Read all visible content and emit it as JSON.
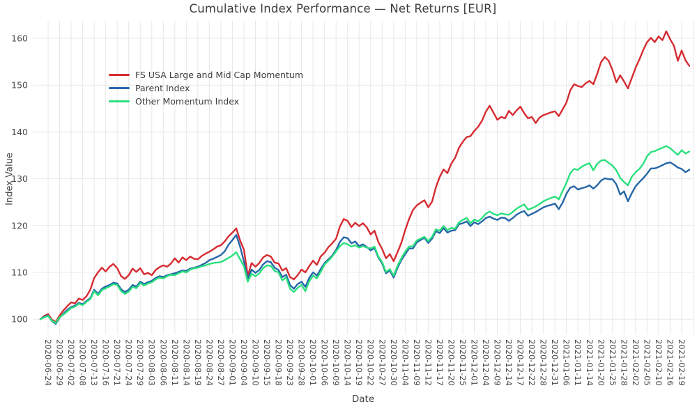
{
  "title": "Cumulative Index Performance — Net Returns [EUR]",
  "axes": {
    "x_label": "Date",
    "y_label": "Index Value",
    "y_ticks": [
      100,
      110,
      120,
      130,
      140,
      150,
      160
    ],
    "x_tick_labels": [
      "2020-06-24",
      "2020-06-29",
      "2020-07-02",
      "2020-07-08",
      "2020-07-13",
      "2020-07-16",
      "2020-07-21",
      "2020-07-24",
      "2020-07-29",
      "2020-08-03",
      "2020-08-06",
      "2020-08-11",
      "2020-08-14",
      "2020-08-19",
      "2020-08-24",
      "2020-08-27",
      "2020-09-01",
      "2020-09-04",
      "2020-09-10",
      "2020-09-15",
      "2020-09-18",
      "2020-09-23",
      "2020-09-28",
      "2020-10-01",
      "2020-10-06",
      "2020-10-09",
      "2020-10-14",
      "2020-10-19",
      "2020-10-22",
      "2020-10-27",
      "2020-10-30",
      "2020-11-04",
      "2020-11-09",
      "2020-11-12",
      "2020-11-17",
      "2020-11-20",
      "2020-11-25",
      "2020-12-01",
      "2020-12-04",
      "2020-12-09",
      "2020-12-14",
      "2020-12-17",
      "2020-12-22",
      "2020-12-28",
      "2020-12-31",
      "2021-01-06",
      "2021-01-11",
      "2021-01-14",
      "2021-01-20",
      "2021-01-25",
      "2021-01-28",
      "2021-02-02",
      "2021-02-05",
      "2021-02-10",
      "2021-02-16",
      "2021-02-19"
    ]
  },
  "legend": [
    {
      "label": "FS USA Large and Mid Cap Momentum",
      "color": "#d62b31"
    },
    {
      "label": "Parent Index",
      "color": "#2566a8"
    },
    {
      "label": "Other Momentum Index",
      "color": "#29e07d"
    }
  ],
  "style": {
    "gridline_color": "#e8e8e8",
    "tick_text_color": "#4a4a4a",
    "background": "#ffffff"
  },
  "chart_data": {
    "type": "line",
    "title": "Cumulative Index Performance — Net Returns [EUR]",
    "xlabel": "Date",
    "ylabel": "Index Value",
    "ylim": [
      96.8,
      163.7
    ],
    "grid": true,
    "legend_position": "inside-top-left",
    "x_tick_every": 3,
    "x_tick_start_index": 2,
    "x": [
      "2020-06-22",
      "2020-06-23",
      "2020-06-24",
      "2020-06-25",
      "2020-06-26",
      "2020-06-29",
      "2020-06-30",
      "2020-07-01",
      "2020-07-02",
      "2020-07-06",
      "2020-07-07",
      "2020-07-08",
      "2020-07-09",
      "2020-07-10",
      "2020-07-13",
      "2020-07-14",
      "2020-07-15",
      "2020-07-16",
      "2020-07-17",
      "2020-07-20",
      "2020-07-21",
      "2020-07-22",
      "2020-07-23",
      "2020-07-24",
      "2020-07-27",
      "2020-07-28",
      "2020-07-29",
      "2020-07-30",
      "2020-07-31",
      "2020-08-03",
      "2020-08-04",
      "2020-08-05",
      "2020-08-06",
      "2020-08-07",
      "2020-08-10",
      "2020-08-11",
      "2020-08-12",
      "2020-08-13",
      "2020-08-14",
      "2020-08-17",
      "2020-08-18",
      "2020-08-19",
      "2020-08-20",
      "2020-08-21",
      "2020-08-24",
      "2020-08-25",
      "2020-08-26",
      "2020-08-27",
      "2020-08-28",
      "2020-08-31",
      "2020-09-01",
      "2020-09-02",
      "2020-09-03",
      "2020-09-04",
      "2020-09-08",
      "2020-09-09",
      "2020-09-10",
      "2020-09-11",
      "2020-09-14",
      "2020-09-15",
      "2020-09-16",
      "2020-09-17",
      "2020-09-18",
      "2020-09-21",
      "2020-09-22",
      "2020-09-23",
      "2020-09-24",
      "2020-09-25",
      "2020-09-28",
      "2020-09-29",
      "2020-09-30",
      "2020-10-01",
      "2020-10-02",
      "2020-10-05",
      "2020-10-06",
      "2020-10-07",
      "2020-10-08",
      "2020-10-09",
      "2020-10-12",
      "2020-10-13",
      "2020-10-14",
      "2020-10-15",
      "2020-10-16",
      "2020-10-19",
      "2020-10-20",
      "2020-10-21",
      "2020-10-22",
      "2020-10-23",
      "2020-10-26",
      "2020-10-27",
      "2020-10-28",
      "2020-10-29",
      "2020-10-30",
      "2020-11-02",
      "2020-11-03",
      "2020-11-04",
      "2020-11-05",
      "2020-11-06",
      "2020-11-09",
      "2020-11-10",
      "2020-11-11",
      "2020-11-12",
      "2020-11-13",
      "2020-11-16",
      "2020-11-17",
      "2020-11-18",
      "2020-11-19",
      "2020-11-20",
      "2020-11-23",
      "2020-11-24",
      "2020-11-25",
      "2020-11-27",
      "2020-11-30",
      "2020-12-01",
      "2020-12-02",
      "2020-12-03",
      "2020-12-04",
      "2020-12-07",
      "2020-12-08",
      "2020-12-09",
      "2020-12-10",
      "2020-12-11",
      "2020-12-14",
      "2020-12-15",
      "2020-12-16",
      "2020-12-17",
      "2020-12-18",
      "2020-12-21",
      "2020-12-22",
      "2020-12-23",
      "2020-12-24",
      "2020-12-28",
      "2020-12-29",
      "2020-12-30",
      "2020-12-31",
      "2021-01-04",
      "2021-01-05",
      "2021-01-06",
      "2021-01-07",
      "2021-01-08",
      "2021-01-11",
      "2021-01-12",
      "2021-01-13",
      "2021-01-14",
      "2021-01-15",
      "2021-01-19",
      "2021-01-20",
      "2021-01-21",
      "2021-01-22",
      "2021-01-25",
      "2021-01-26",
      "2021-01-27",
      "2021-01-28",
      "2021-01-29",
      "2021-02-01",
      "2021-02-02",
      "2021-02-03",
      "2021-02-04",
      "2021-02-05",
      "2021-02-08",
      "2021-02-09",
      "2021-02-10",
      "2021-02-11",
      "2021-02-12",
      "2021-02-16",
      "2021-02-17",
      "2021-02-18",
      "2021-02-19",
      "2021-02-22",
      "2021-02-23"
    ],
    "series": [
      {
        "name": "FS USA Large and Mid Cap Momentum",
        "color": "#d62b31",
        "values": [
          100.0,
          100.7,
          101.1,
          99.9,
          99.4,
          100.8,
          101.9,
          102.8,
          103.6,
          103.4,
          104.4,
          104.1,
          104.9,
          106.3,
          108.8,
          110.0,
          111.0,
          110.2,
          111.2,
          111.8,
          110.9,
          109.2,
          108.6,
          109.4,
          110.8,
          110.1,
          110.9,
          109.6,
          109.9,
          109.4,
          110.5,
          111.1,
          111.5,
          111.2,
          111.9,
          113.0,
          112.1,
          113.2,
          112.6,
          113.4,
          112.9,
          112.8,
          113.5,
          114.0,
          114.4,
          114.9,
          115.5,
          115.8,
          116.6,
          117.7,
          118.5,
          119.4,
          116.8,
          114.8,
          109.3,
          112.0,
          111.2,
          112.0,
          113.2,
          113.7,
          113.4,
          112.1,
          111.9,
          110.4,
          110.9,
          109.0,
          108.5,
          109.4,
          110.6,
          110.0,
          111.3,
          112.5,
          111.6,
          113.4,
          114.2,
          115.4,
          116.2,
          117.2,
          119.8,
          121.4,
          121.0,
          119.7,
          120.6,
          119.9,
          120.5,
          119.6,
          118.1,
          118.9,
          116.5,
          115.0,
          113.0,
          113.9,
          112.4,
          114.3,
          116.3,
          119.0,
          121.4,
          123.3,
          124.3,
          124.9,
          125.4,
          123.9,
          125.1,
          128.2,
          130.4,
          132.0,
          131.2,
          133.2,
          134.5,
          136.6,
          137.9,
          138.9,
          139.1,
          140.2,
          141.1,
          142.4,
          144.3,
          145.6,
          144.1,
          142.6,
          143.2,
          142.9,
          144.5,
          143.6,
          144.6,
          145.4,
          144.0,
          142.9,
          143.2,
          141.9,
          143.1,
          143.6,
          143.9,
          144.2,
          144.4,
          143.4,
          144.8,
          146.3,
          148.9,
          150.2,
          149.8,
          149.6,
          150.4,
          150.9,
          150.2,
          152.4,
          154.9,
          156.0,
          155.2,
          153.2,
          150.6,
          152.1,
          150.8,
          149.3,
          151.5,
          153.7,
          155.5,
          157.5,
          159.2,
          160.1,
          159.2,
          160.4,
          159.6,
          161.5,
          159.8,
          158.4,
          155.2,
          157.4,
          155.3,
          154.1
        ]
      },
      {
        "name": "Parent Index",
        "color": "#2566a8",
        "values": [
          100.0,
          100.5,
          100.8,
          99.6,
          99.0,
          100.3,
          101.2,
          102.0,
          102.6,
          102.9,
          103.5,
          103.2,
          103.9,
          104.5,
          106.3,
          105.4,
          106.5,
          107.0,
          107.3,
          107.8,
          107.6,
          106.4,
          105.8,
          106.3,
          107.3,
          107.0,
          108.0,
          107.5,
          107.9,
          108.2,
          108.8,
          109.2,
          109.0,
          109.4,
          109.6,
          109.8,
          110.1,
          110.4,
          110.3,
          110.8,
          111.0,
          111.2,
          111.6,
          112.0,
          112.6,
          112.9,
          113.3,
          113.7,
          114.5,
          115.9,
          116.9,
          118.0,
          115.5,
          112.3,
          108.6,
          110.6,
          109.9,
          110.5,
          111.7,
          112.4,
          112.2,
          111.0,
          110.5,
          109.0,
          109.5,
          107.3,
          106.5,
          107.5,
          108.0,
          106.9,
          108.8,
          110.0,
          109.3,
          110.7,
          112.0,
          112.8,
          113.6,
          114.8,
          116.5,
          117.5,
          117.3,
          116.2,
          116.6,
          115.6,
          116.0,
          115.4,
          114.7,
          115.2,
          113.2,
          111.9,
          109.8,
          110.4,
          108.9,
          111.0,
          112.6,
          113.9,
          115.1,
          115.1,
          116.4,
          116.9,
          117.4,
          116.3,
          117.2,
          118.8,
          118.4,
          119.5,
          118.5,
          118.9,
          119.0,
          120.3,
          120.5,
          120.9,
          119.9,
          120.7,
          120.3,
          120.9,
          121.6,
          121.9,
          121.5,
          121.2,
          121.7,
          121.6,
          121.0,
          121.6,
          122.3,
          122.8,
          123.1,
          122.1,
          122.5,
          122.9,
          123.4,
          123.9,
          124.2,
          124.4,
          124.7,
          123.5,
          124.9,
          126.8,
          128.1,
          128.4,
          127.7,
          128.0,
          128.2,
          128.6,
          127.9,
          128.6,
          129.6,
          130.1,
          129.9,
          129.9,
          128.8,
          126.6,
          127.3,
          125.2,
          126.9,
          128.4,
          129.3,
          130.1,
          131.1,
          132.2,
          132.2,
          132.5,
          132.9,
          133.3,
          133.5,
          133.0,
          132.4,
          132.1,
          131.4,
          131.9
        ]
      },
      {
        "name": "Other Momentum Index",
        "color": "#29e07d",
        "values": [
          100.0,
          100.4,
          100.7,
          99.7,
          99.2,
          100.4,
          101.0,
          101.7,
          102.4,
          102.7,
          103.3,
          103.0,
          103.7,
          104.3,
          106.0,
          105.1,
          106.2,
          106.6,
          107.0,
          107.5,
          107.3,
          106.0,
          105.4,
          105.9,
          106.9,
          106.6,
          107.7,
          107.2,
          107.6,
          107.9,
          108.5,
          108.9,
          108.7,
          109.2,
          109.5,
          109.4,
          109.8,
          110.2,
          110.0,
          110.6,
          110.9,
          111.0,
          111.3,
          111.5,
          111.8,
          112.0,
          112.1,
          112.2,
          112.6,
          113.1,
          113.6,
          114.3,
          112.8,
          111.3,
          108.0,
          109.7,
          109.2,
          109.8,
          110.9,
          111.5,
          111.4,
          110.3,
          110.0,
          108.3,
          108.9,
          106.5,
          105.8,
          106.7,
          107.3,
          106.0,
          108.1,
          109.3,
          108.7,
          110.1,
          111.7,
          112.5,
          113.4,
          114.5,
          115.6,
          116.3,
          116.0,
          115.5,
          115.8,
          115.3,
          115.6,
          115.3,
          115.1,
          115.5,
          113.4,
          112.2,
          110.1,
          110.7,
          109.3,
          111.4,
          113.0,
          114.4,
          115.5,
          115.6,
          116.8,
          117.2,
          117.6,
          116.7,
          117.6,
          119.2,
          118.9,
          119.9,
          119.0,
          119.5,
          119.3,
          120.7,
          121.2,
          121.6,
          120.5,
          121.3,
          120.9,
          121.6,
          122.5,
          123.0,
          122.5,
          122.2,
          122.6,
          122.4,
          122.3,
          122.9,
          123.6,
          124.1,
          124.5,
          123.4,
          123.7,
          124.1,
          124.6,
          125.2,
          125.6,
          125.9,
          126.2,
          125.6,
          127.4,
          129.1,
          131.2,
          132.1,
          131.9,
          132.6,
          133.0,
          133.3,
          131.8,
          133.2,
          133.9,
          134.0,
          133.4,
          132.8,
          131.8,
          130.2,
          129.3,
          128.6,
          130.4,
          131.4,
          132.1,
          133.2,
          134.8,
          135.7,
          135.9,
          136.3,
          136.6,
          137.0,
          136.5,
          135.8,
          135.1,
          136.1,
          135.4,
          135.8
        ]
      }
    ]
  }
}
